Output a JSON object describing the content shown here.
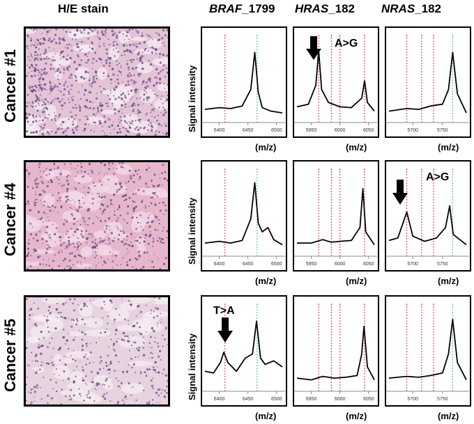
{
  "headers": {
    "he": "H/E stain",
    "braf_gene": "BRAF",
    "braf_pos": "_1799",
    "hras_gene": "HRAS",
    "hras_pos": "_182",
    "nras_gene": "NRAS",
    "nras_pos": "_182"
  },
  "axis": {
    "ylabel": "Signal intensity",
    "xlabel": "(m/z)"
  },
  "rows": [
    {
      "label": "Cancer #1",
      "mutation_column": "HRAS",
      "mutation": "A>G"
    },
    {
      "label": "Cancer #4",
      "mutation_column": "NRAS",
      "mutation": "A>G"
    },
    {
      "label": "Cancer #5",
      "mutation_column": "BRAF",
      "mutation": "T>A"
    }
  ],
  "ticks": {
    "braf": [
      "6400",
      "6450",
      "6500"
    ],
    "hras": [
      "5950",
      "6000",
      "6050"
    ],
    "nras": [
      "5700",
      "5750"
    ]
  },
  "colors": {
    "wildtype_line": "#4aa8d8",
    "mutant_line": "#e03030",
    "he_pink": "#d9a6c6",
    "he_nuclei": "#6a4a86"
  },
  "chart_data": [
    {
      "type": "line",
      "row": "Cancer #1",
      "gene": "BRAF",
      "xlim": [
        6375,
        6510
      ],
      "x": [
        6375,
        6400,
        6420,
        6440,
        6455,
        6462,
        6468,
        6475,
        6490,
        6510
      ],
      "y": [
        0.12,
        0.14,
        0.13,
        0.16,
        0.35,
        0.78,
        0.32,
        0.14,
        0.1,
        0.08
      ]
    },
    {
      "type": "line",
      "row": "Cancer #1",
      "gene": "HRAS",
      "xlim": [
        5925,
        6060
      ],
      "x": [
        5925,
        5945,
        5958,
        5963,
        5968,
        5980,
        6000,
        6020,
        6038,
        6043,
        6048,
        6060
      ],
      "y": [
        0.15,
        0.18,
        0.4,
        0.8,
        0.35,
        0.2,
        0.15,
        0.14,
        0.25,
        0.45,
        0.2,
        0.1
      ]
    },
    {
      "type": "line",
      "row": "Cancer #1",
      "gene": "NRAS",
      "xlim": [
        5660,
        5790
      ],
      "x": [
        5660,
        5690,
        5710,
        5730,
        5750,
        5760,
        5767,
        5775,
        5790
      ],
      "y": [
        0.1,
        0.13,
        0.12,
        0.16,
        0.18,
        0.35,
        0.78,
        0.3,
        0.08
      ]
    },
    {
      "type": "line",
      "row": "Cancer #4",
      "gene": "BRAF",
      "xlim": [
        6375,
        6510
      ],
      "x": [
        6375,
        6400,
        6420,
        6440,
        6455,
        6462,
        6468,
        6475,
        6485,
        6495,
        6510
      ],
      "y": [
        0.12,
        0.14,
        0.12,
        0.15,
        0.4,
        0.82,
        0.35,
        0.25,
        0.3,
        0.16,
        0.1
      ]
    },
    {
      "type": "line",
      "row": "Cancer #4",
      "gene": "HRAS",
      "xlim": [
        5925,
        6060
      ],
      "x": [
        5925,
        5950,
        5970,
        5985,
        6000,
        6020,
        6035,
        6040,
        6045,
        6060
      ],
      "y": [
        0.12,
        0.12,
        0.16,
        0.13,
        0.14,
        0.15,
        0.3,
        0.75,
        0.25,
        0.1
      ]
    },
    {
      "type": "line",
      "row": "Cancer #4",
      "gene": "NRAS",
      "xlim": [
        5660,
        5790
      ],
      "x": [
        5660,
        5675,
        5685,
        5690,
        5700,
        5720,
        5740,
        5755,
        5762,
        5768,
        5790
      ],
      "y": [
        0.15,
        0.18,
        0.38,
        0.48,
        0.2,
        0.14,
        0.18,
        0.3,
        0.55,
        0.22,
        0.1
      ]
    },
    {
      "type": "line",
      "row": "Cancer #5",
      "gene": "BRAF",
      "xlim": [
        6375,
        6510
      ],
      "x": [
        6375,
        6390,
        6402,
        6408,
        6415,
        6430,
        6445,
        6458,
        6465,
        6472,
        6480,
        6495,
        6510
      ],
      "y": [
        0.2,
        0.18,
        0.3,
        0.42,
        0.3,
        0.2,
        0.35,
        0.4,
        0.78,
        0.35,
        0.28,
        0.32,
        0.25
      ]
    },
    {
      "type": "line",
      "row": "Cancer #5",
      "gene": "HRAS",
      "xlim": [
        5925,
        6060
      ],
      "x": [
        5925,
        5950,
        5970,
        5990,
        6010,
        6030,
        6038,
        6042,
        6048,
        6060
      ],
      "y": [
        0.12,
        0.1,
        0.14,
        0.12,
        0.13,
        0.15,
        0.4,
        0.72,
        0.25,
        0.1
      ]
    },
    {
      "type": "line",
      "row": "Cancer #5",
      "gene": "NRAS",
      "xlim": [
        5660,
        5790
      ],
      "x": [
        5660,
        5690,
        5710,
        5730,
        5750,
        5760,
        5767,
        5775,
        5790
      ],
      "y": [
        0.12,
        0.14,
        0.13,
        0.15,
        0.18,
        0.4,
        0.8,
        0.3,
        0.1
      ]
    }
  ]
}
